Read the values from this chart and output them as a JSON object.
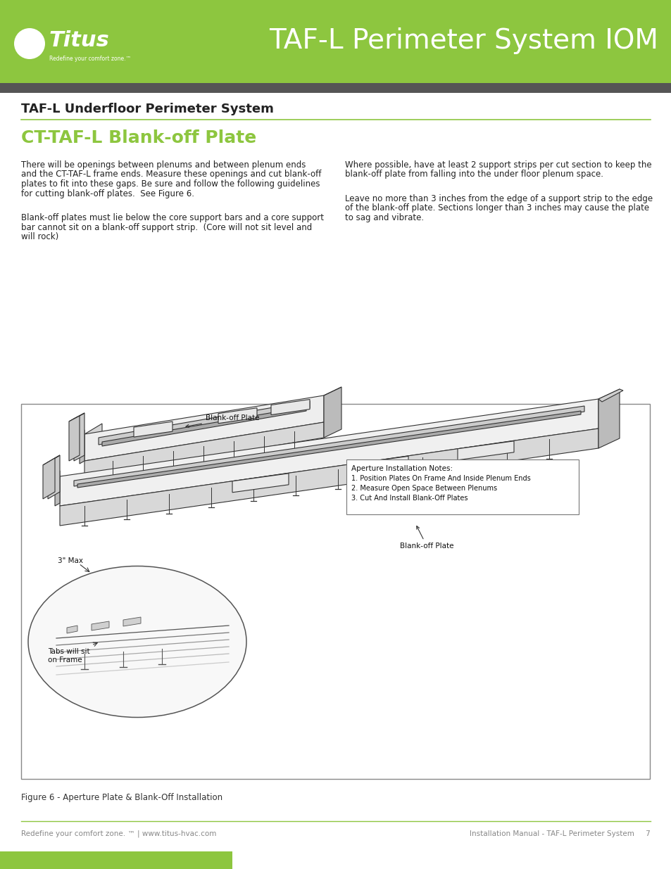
{
  "page_width": 9.54,
  "page_height": 12.35,
  "header_color": "#8dc63f",
  "header_dark_bar_color": "#555555",
  "header_title": "TAF-L Perimeter System IOM",
  "header_title_color": "#ffffff",
  "header_title_fontsize": 28,
  "section_title": "TAF-L Underfloor Perimeter System",
  "section_title_fontsize": 13,
  "section_title_color": "#222222",
  "subsection_title": "CT-TAF-L Blank-off Plate",
  "subsection_title_color": "#8dc63f",
  "subsection_title_fontsize": 18,
  "body_text_left_col1_lines": [
    "There will be openings between plenums and between plenum ends",
    "and the CT-TAF-L frame ends. Measure these openings and cut blank-off",
    "plates to fit into these gaps. Be sure and follow the following guidelines",
    "for cutting blank-off plates.  See Figure 6."
  ],
  "body_text_left_col2_lines": [
    "Blank-off plates must lie below the core support bars and a core support",
    "bar cannot sit on a blank-off support strip.  (Core will not sit level and",
    "will rock)"
  ],
  "body_text_right_col1_lines": [
    "Where possible, have at least 2 support strips per cut section to keep the",
    "blank-off plate from falling into the under floor plenum space."
  ],
  "body_text_right_col2_lines": [
    "Leave no more than 3 inches from the edge of a support strip to the edge",
    "of the blank-off plate. Sections longer than 3 inches may cause the plate",
    "to sag and vibrate."
  ],
  "body_fontsize": 8.5,
  "body_text_color": "#222222",
  "figure_caption": "Figure 6 - Aperture Plate & Blank-Off Installation",
  "figure_caption_fontsize": 8.5,
  "footer_left": "Redefine your comfort zone. ™ | www.titus-hvac.com",
  "footer_right": "Installation Manual - TAF-L Perimeter System     7",
  "footer_fontsize": 7.5,
  "footer_text_color": "#888888",
  "footer_green_bar_color": "#8dc63f",
  "line_color": "#8dc63f",
  "annotation_notes_title": "Aperture Installation Notes:",
  "annotation_notes_lines": [
    "1. Position Plates On Frame And Inside Plenum Ends",
    "2. Measure Open Space Between Plenums",
    "3. Cut And Install Blank-Off Plates"
  ],
  "annotation_label1": "Blank-off Plate",
  "annotation_label2": "Blank-off Plate",
  "annotation_label3": "3\" Max",
  "annotation_label4_line1": "Tabs will sit",
  "annotation_label4_line2": "on Frame",
  "diagram_border_color": "#aaaaaa",
  "titus_logo_color": "#ffffff"
}
